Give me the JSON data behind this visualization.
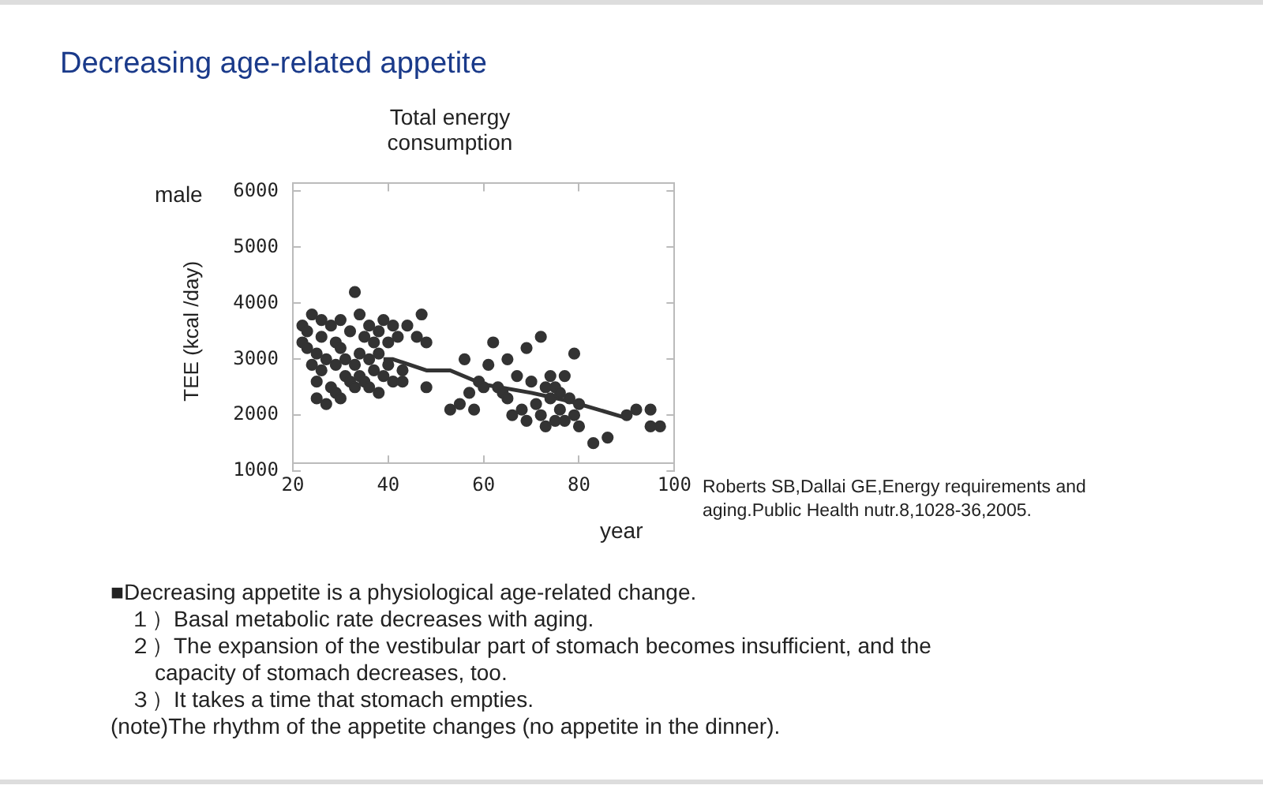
{
  "chart_data": {
    "type": "scatter",
    "title": "Decreasing age-related appetite",
    "subtitle": "Total energy consumption",
    "xlabel": "year",
    "ylabel": "TEE (kcal /day)",
    "xlim": [
      20,
      100
    ],
    "xticks": [
      20,
      40,
      60,
      80,
      100
    ],
    "ylim": [
      1000,
      6000
    ],
    "yticks": [
      1000,
      2000,
      3000,
      4000,
      5000,
      6000
    ],
    "grid": false,
    "legend": false,
    "marker": "circle",
    "series": [
      {
        "color": "#333333",
        "x": [
          22,
          22,
          23,
          23,
          24,
          24,
          25,
          25,
          25,
          26,
          26,
          26,
          27,
          27,
          28,
          28,
          29,
          29,
          29,
          30,
          30,
          30,
          31,
          31,
          32,
          32,
          33,
          33,
          33,
          34,
          34,
          34,
          35,
          35,
          36,
          36,
          36,
          37,
          37,
          38,
          38,
          38,
          39,
          39,
          40,
          40,
          41,
          41,
          42,
          43,
          43,
          44,
          46,
          47,
          48,
          48,
          53,
          55,
          56,
          57,
          58,
          59,
          60,
          61,
          62,
          63,
          64,
          65,
          65,
          66,
          67,
          68,
          69,
          69,
          70,
          71,
          72,
          72,
          73,
          73,
          74,
          74,
          75,
          75,
          76,
          76,
          77,
          77,
          78,
          79,
          79,
          80,
          80,
          83,
          86,
          90,
          92,
          95,
          95,
          97
        ],
        "values": [
          3600,
          3300,
          3200,
          3500,
          2900,
          3800,
          3100,
          2600,
          2300,
          3700,
          3400,
          2800,
          2200,
          3000,
          3600,
          2500,
          3300,
          2400,
          2900,
          3700,
          3200,
          2300,
          2700,
          3000,
          2600,
          3500,
          4200,
          2500,
          2900,
          3800,
          3100,
          2700,
          3400,
          2600,
          3600,
          3000,
          2500,
          3300,
          2800,
          3500,
          3100,
          2400,
          3700,
          2700,
          3300,
          2900,
          3600,
          2600,
          3400,
          2800,
          2600,
          3600,
          3400,
          3800,
          3300,
          2500,
          2100,
          2200,
          3000,
          2400,
          2100,
          2600,
          2500,
          2900,
          3300,
          2500,
          2400,
          3000,
          2300,
          2000,
          2700,
          2100,
          3200,
          1900,
          2600,
          2200,
          3400,
          2000,
          2500,
          1800,
          2700,
          2300,
          1900,
          2500,
          2400,
          2100,
          2700,
          1900,
          2300,
          3100,
          2000,
          2200,
          1800,
          1500,
          1600,
          2000,
          2100,
          2100,
          1800,
          1800
        ]
      },
      {
        "type": "line",
        "color": "#333333",
        "marker": "none",
        "x": [
          39,
          41,
          48,
          53,
          60,
          70,
          78,
          90
        ],
        "values": [
          3000,
          3000,
          2800,
          2800,
          2550,
          2400,
          2250,
          1950
        ]
      }
    ],
    "annotations": [
      "male",
      "Roberts SB,Dallai GE,Energy requirements and aging.Public Health nutr.8,1028-36,2005.",
      "■Decreasing appetite is a physiological age-related change.",
      "１）Basal metabolic rate decreases with aging.",
      "２）The expansion of the vestibular part of stomach becomes insufficient, and the capacity of stomach decreases, too.",
      "３）It takes a time that stomach empties.",
      "(note)The rhythm of the appetite changes (no appetite in the dinner)."
    ]
  }
}
